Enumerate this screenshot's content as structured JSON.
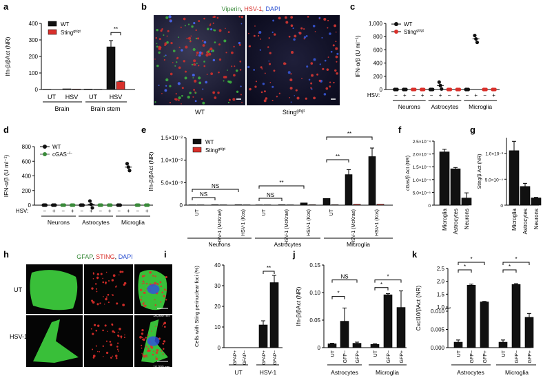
{
  "colors": {
    "black": "#111111",
    "red": "#d9302b",
    "green": "#3a8a3a",
    "blue": "#2a4fd0"
  },
  "figure": {
    "labels": {
      "a": "a",
      "b": "b",
      "c": "c",
      "d": "d",
      "e": "e",
      "f": "f",
      "g": "g",
      "h": "h",
      "i": "i",
      "j": "j",
      "k": "k"
    },
    "b": {
      "title_parts": [
        "Viperin",
        ", ",
        "HSV-1",
        ", ",
        "DAPI"
      ],
      "left_label": "WT",
      "right_label_main": "Sting",
      "right_label_sup": "gt/gt"
    },
    "h": {
      "title_parts": [
        "GFAP",
        ", ",
        "STING",
        ", ",
        "DAPI"
      ],
      "row_labels": [
        "UT",
        "HSV-1"
      ],
      "scalebar": "10,000 nm"
    },
    "hsv_prefix": "HSV:"
  },
  "chart_data": [
    {
      "id": "a",
      "type": "bar",
      "ylabel": "Ifn-β/βAct (NR)",
      "ylim": [
        0,
        400
      ],
      "yticks": [
        "0",
        "100",
        "200",
        "300",
        "400"
      ],
      "categories": [
        "UT",
        "HSV",
        "UT",
        "HSV"
      ],
      "series": [
        {
          "name": "WT",
          "values": [
            2,
            4,
            3,
            258
          ]
        },
        {
          "name": "Sting",
          "name_sup": "gt/gt",
          "values": [
            1,
            3,
            2,
            47
          ]
        }
      ],
      "groups": [
        "Brain",
        "Brain stem"
      ],
      "significance": [
        "**"
      ]
    },
    {
      "id": "c",
      "type": "scatter",
      "ylabel": "IFN-α/β (U ml⁻¹)",
      "ylim": [
        0,
        1000
      ],
      "yticks": [
        "0",
        "200",
        "400",
        "600",
        "800",
        "1,000"
      ],
      "groups": [
        "Neurons",
        "Astrocytes",
        "Microglia"
      ],
      "hsv": [
        "−",
        "+",
        "−",
        "+",
        "−",
        "+",
        "−",
        "+",
        "−",
        "+",
        "−",
        "+"
      ],
      "series": [
        {
          "name": "WT",
          "means": [
            0,
            0,
            0,
            60,
            0,
            765
          ]
        },
        {
          "name": "Sting",
          "name_sup": "gt/gt",
          "means": [
            0,
            0,
            0,
            0,
            0,
            0
          ]
        }
      ]
    },
    {
      "id": "d",
      "type": "scatter",
      "ylabel": "IFN-α/β (U ml⁻¹)",
      "ylim": [
        0,
        800
      ],
      "yticks": [
        "0",
        "200",
        "400",
        "600",
        "800"
      ],
      "groups": [
        "Neurons",
        "Astrocytes",
        "Microglia"
      ],
      "hsv": [
        "−",
        "+",
        "−",
        "+",
        "−",
        "+",
        "−",
        "+",
        "−",
        "+",
        "−",
        "+"
      ],
      "series": [
        {
          "name": "WT",
          "means": [
            0,
            0,
            0,
            10,
            0,
            520
          ]
        },
        {
          "name": "cGAS",
          "name_sup": "−/−",
          "means": [
            0,
            0,
            0,
            0,
            0,
            0
          ]
        }
      ]
    },
    {
      "id": "e",
      "type": "bar",
      "ylabel": "Ifn-β/βAct (NR)",
      "ylim": [
        0,
        0.015
      ],
      "yticks": [
        "0",
        "5.0×10⁻³",
        "1.0×10⁻²",
        "1.5×10⁻²"
      ],
      "categories": [
        "UT",
        "HSV-1 (McKrae)",
        "HSV-1 (Kos)",
        "UT",
        "HSV-1 (McKrae)",
        "HSV-1 (Kos)",
        "UT",
        "HSV-1 (McKrae)",
        "HSV-1 (Kos)"
      ],
      "series": [
        {
          "name": "WT",
          "values": [
            5e-05,
            0.0001,
            0.0001,
            5e-05,
            0.0001,
            0.0005,
            0.0015,
            0.0068,
            0.0108
          ]
        },
        {
          "name": "Sting",
          "name_sup": "gt/gt",
          "values": [
            3e-05,
            5e-05,
            5e-05,
            3e-05,
            5e-05,
            0.0001,
            0.0001,
            0.0002,
            0.0002
          ]
        }
      ],
      "groups": [
        "Neurons",
        "Astrocytes",
        "Microglia"
      ],
      "significance": [
        "NS",
        "NS",
        "NS",
        "**",
        "**",
        "**"
      ]
    },
    {
      "id": "f",
      "type": "bar",
      "ylabel": "cGas/β Act (NR)",
      "ylim": [
        0,
        0.00025
      ],
      "yticks": [
        "0",
        "5.0×10⁻⁵",
        "1.0×10⁻⁴",
        "1.5×10⁻⁴",
        "2.0×10⁻⁴",
        "2.5×10⁻⁴"
      ],
      "categories": [
        "Microglia",
        "Astrocytes",
        "Neurons"
      ],
      "values": [
        0.000208,
        0.000142,
        2.8e-05
      ]
    },
    {
      "id": "g",
      "type": "bar",
      "ylabel": "Sting/β Act (NR)",
      "ylim": [
        0,
        0.0013
      ],
      "yticks": [
        "0",
        "5.0×10⁻⁴",
        "1.0×10⁻³"
      ],
      "categories": [
        "Microglia",
        "Astrocytes",
        "Neurons"
      ],
      "values": [
        0.00105,
        0.00036,
        0.00014
      ]
    },
    {
      "id": "i",
      "type": "bar",
      "ylabel": "Cells with Sting perinuclear foci (%)",
      "ylim": [
        0,
        40
      ],
      "yticks": [
        "0",
        "10",
        "20",
        "30",
        "40"
      ],
      "categories": [
        "GFAP+",
        "GFAP−",
        "GFAP+",
        "GFAP−"
      ],
      "values": [
        0,
        0,
        11,
        31.5
      ],
      "groups": [
        "UT",
        "HSV-1"
      ],
      "significance": [
        "**"
      ]
    },
    {
      "id": "j",
      "type": "bar",
      "ylabel": "Ifn-β/βAct (NR)",
      "ylim": [
        0,
        0.15
      ],
      "yticks": [
        "0",
        "0.05",
        "0.10",
        "0.15"
      ],
      "categories": [
        "UT",
        "GFP−",
        "GFP+",
        "UT",
        "GFP−",
        "GFP+"
      ],
      "values": [
        0.007,
        0.048,
        0.008,
        0.006,
        0.096,
        0.073
      ],
      "groups": [
        "Astrocytes",
        "Microglia"
      ],
      "significance": [
        "*",
        "NS",
        "*",
        "*"
      ]
    },
    {
      "id": "k",
      "type": "bar",
      "ylabel": "Cxcl10/βAct (NR)",
      "ylim": [
        0,
        2.5
      ],
      "yticks": [
        "0.000",
        "0.005",
        "0.010",
        "1.0",
        "1.5",
        "2.0",
        "2.5"
      ],
      "categories": [
        "UT",
        "GFP−",
        "GFP+",
        "UT",
        "GFP−",
        "GFP+"
      ],
      "values": [
        0.0015,
        1.85,
        1.2,
        0.0015,
        1.88,
        0.6
      ],
      "groups": [
        "Astrocytes",
        "Microglia"
      ],
      "significance": [
        "*",
        "*",
        "*",
        "*"
      ]
    }
  ]
}
